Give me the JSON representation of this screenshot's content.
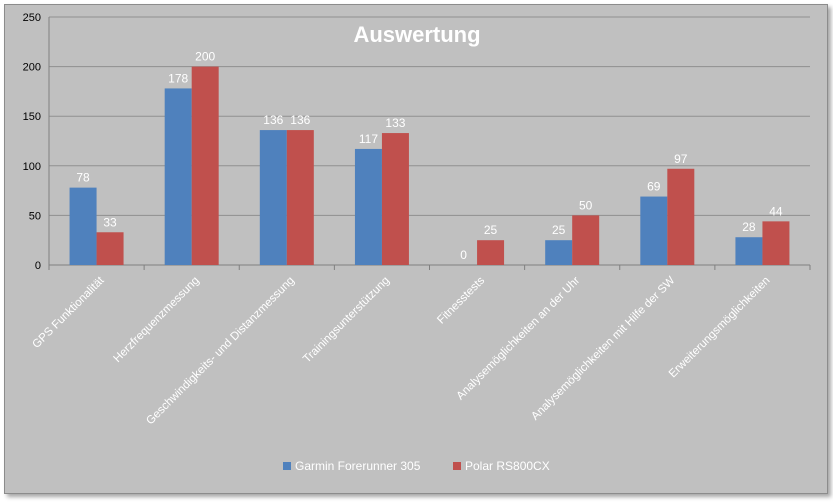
{
  "chart_data": {
    "type": "bar",
    "title": "Auswertung",
    "xlabel": "",
    "ylabel": "",
    "ylim": [
      0,
      250
    ],
    "yticks": [
      0,
      50,
      100,
      150,
      200,
      250
    ],
    "grid": true,
    "legend_position": "bottom",
    "categories": [
      "GPS Funktionalität",
      "Herzfrequenzmessung",
      "Geschwindigkeits- und Distanzmessung",
      "Trainingsunterstützung",
      "Fitnesstests",
      "Analysemöglichkeiten an der Uhr",
      "Analysemöglichkeiten mit Hilfe der SW",
      "Erweiterungsmöglichkeiten"
    ],
    "series": [
      {
        "name": "Garmin Forerunner 305",
        "color": "#4f81bd",
        "values": [
          78,
          178,
          136,
          117,
          0,
          25,
          69,
          28
        ]
      },
      {
        "name": "Polar RS800CX",
        "color": "#c0504d",
        "values": [
          33,
          200,
          136,
          133,
          25,
          50,
          97,
          44
        ]
      }
    ]
  }
}
